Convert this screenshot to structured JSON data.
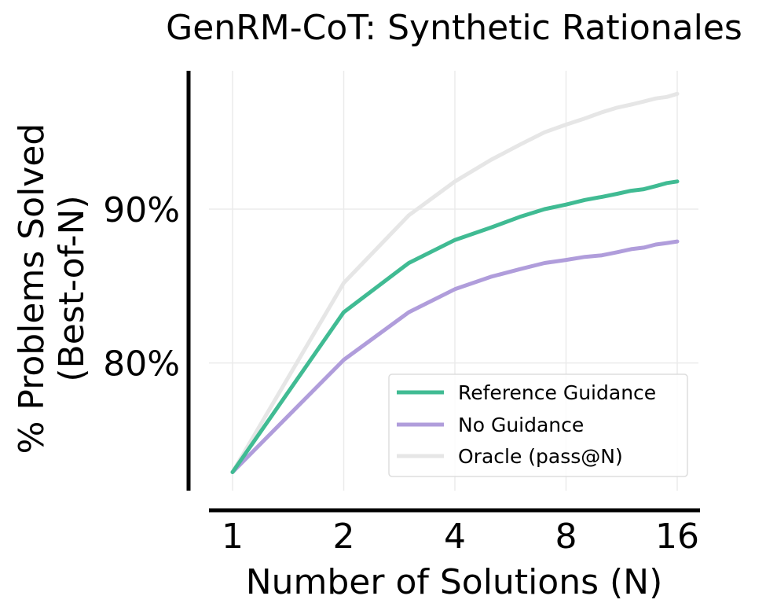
{
  "chart_data": {
    "type": "line",
    "title": "GenRM-CoT: Synthetic Rationales",
    "xlabel": "Number of Solutions (N)",
    "ylabel_lines": [
      "% Problems Solved",
      "(Best-of-N)"
    ],
    "x_scale": "log2",
    "x": [
      1,
      2,
      3,
      4,
      5,
      6,
      7,
      8,
      9,
      10,
      11,
      12,
      13,
      14,
      15,
      16
    ],
    "x_ticks": [
      1,
      2,
      4,
      8,
      16
    ],
    "x_tick_labels": [
      "1",
      "2",
      "4",
      "8",
      "16"
    ],
    "y_ticks": [
      0.8,
      0.9
    ],
    "y_tick_labels": [
      "80%",
      "90%"
    ],
    "xlim": [
      1,
      16
    ],
    "ylim": [
      0.717,
      0.99
    ],
    "grid": true,
    "legend_position": "bottom-right",
    "series": [
      {
        "name": "Reference Guidance",
        "color": "#40bb93",
        "values": [
          0.729,
          0.833,
          0.865,
          0.88,
          0.888,
          0.895,
          0.9,
          0.903,
          0.906,
          0.908,
          0.91,
          0.912,
          0.913,
          0.915,
          0.917,
          0.918
        ]
      },
      {
        "name": "No Guidance",
        "color": "#b09ddb",
        "values": [
          0.729,
          0.802,
          0.833,
          0.848,
          0.856,
          0.861,
          0.865,
          0.867,
          0.869,
          0.87,
          0.872,
          0.874,
          0.875,
          0.877,
          0.878,
          0.879
        ]
      },
      {
        "name": "Oracle (pass@N)",
        "color": "#e6e6e6",
        "values": [
          0.729,
          0.852,
          0.896,
          0.918,
          0.932,
          0.942,
          0.95,
          0.955,
          0.959,
          0.963,
          0.966,
          0.968,
          0.97,
          0.972,
          0.973,
          0.975
        ]
      }
    ]
  }
}
